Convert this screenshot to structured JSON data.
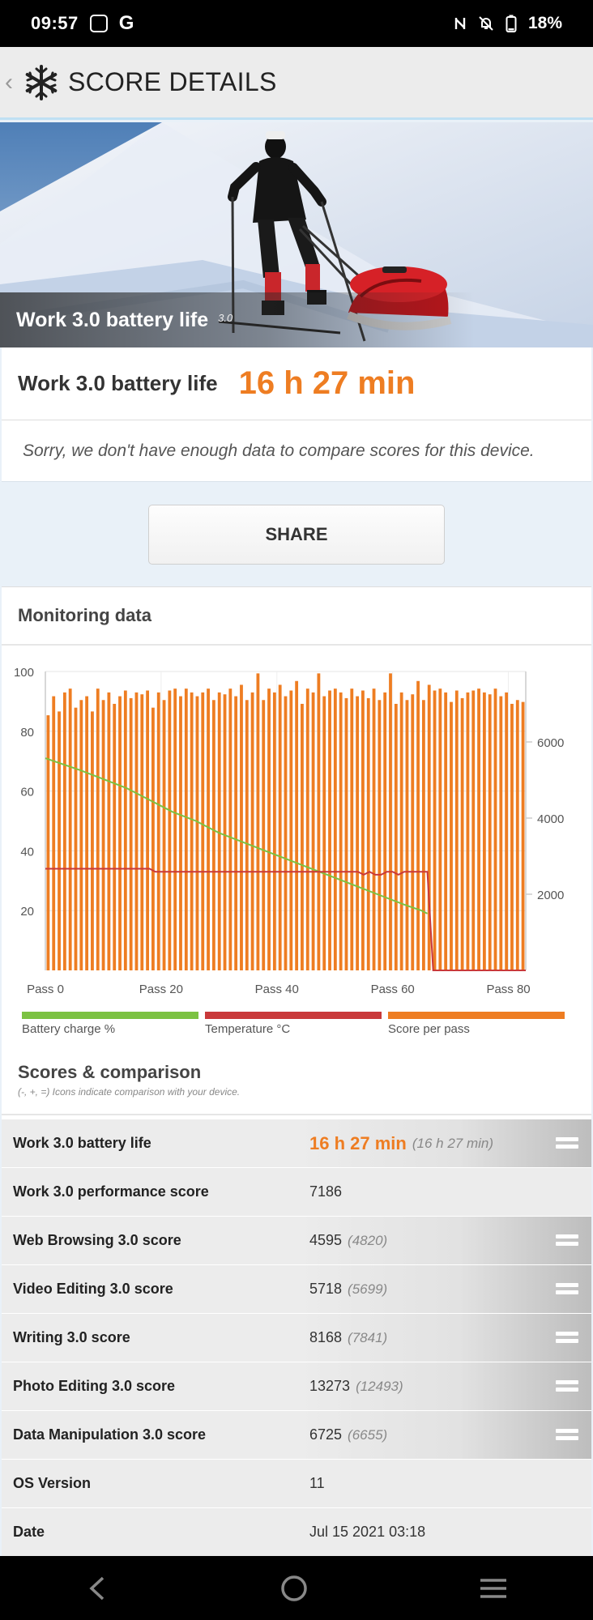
{
  "status_bar": {
    "time": "09:57",
    "battery": "18%"
  },
  "header": {
    "title": "SCORE DETAILS"
  },
  "hero": {
    "caption": "Work 3.0 battery life",
    "version": "3.0"
  },
  "result": {
    "label": "Work 3.0 battery life",
    "value": "16 h 27 min"
  },
  "notice": "Sorry, we don't have enough data to compare scores for this device.",
  "share_label": "SHARE",
  "monitoring": {
    "title": "Monitoring data",
    "legend": [
      {
        "label": "Battery charge %",
        "color": "#7cc242"
      },
      {
        "label": "Temperature °C",
        "color": "#c9393a"
      },
      {
        "label": "Score per pass",
        "color": "#ee7d22"
      }
    ]
  },
  "chart_data": {
    "type": "bar",
    "x_ticks": [
      "Pass 0",
      "Pass 20",
      "Pass 40",
      "Pass 60",
      "Pass 80"
    ],
    "x_tick_values": [
      0,
      20,
      40,
      60,
      80
    ],
    "x_range": [
      0,
      83
    ],
    "y_left_ticks": [
      20,
      40,
      60,
      80,
      100
    ],
    "y_left_range": [
      0,
      100
    ],
    "y_right_ticks": [
      2000,
      4000,
      6000
    ],
    "y_right_range": [
      0,
      7850
    ],
    "series": [
      {
        "name": "Score per pass",
        "axis": "right",
        "values": [
          6700,
          7200,
          6800,
          7300,
          7400,
          6900,
          7100,
          7200,
          6800,
          7400,
          7100,
          7300,
          7000,
          7200,
          7350,
          7150,
          7300,
          7250,
          7350,
          6900,
          7300,
          7100,
          7350,
          7400,
          7200,
          7400,
          7300,
          7200,
          7300,
          7400,
          7100,
          7300,
          7250,
          7400,
          7200,
          7500,
          7100,
          7300,
          7800,
          7100,
          7400,
          7300,
          7500,
          7200,
          7350,
          7600,
          7000,
          7400,
          7300,
          7800,
          7200,
          7350,
          7400,
          7300,
          7150,
          7400,
          7200,
          7350,
          7150,
          7400,
          7100,
          7300,
          7800,
          7000,
          7300,
          7100,
          7250,
          7600,
          7100,
          7500,
          7350,
          7400,
          7300,
          7050,
          7350,
          7150,
          7300,
          7350,
          7400,
          7300,
          7250,
          7400,
          7200,
          7300,
          7000,
          7100,
          7050
        ]
      },
      {
        "name": "Battery charge %",
        "axis": "left",
        "x": [
          0,
          3,
          6,
          10,
          14,
          18,
          22,
          26,
          30,
          34,
          38,
          42,
          46,
          50,
          54,
          58,
          62,
          65,
          66
        ],
        "values": [
          71,
          69,
          67,
          64,
          61,
          57,
          53,
          50,
          46,
          43,
          40,
          37,
          34,
          31,
          28,
          25,
          22,
          20,
          19
        ]
      },
      {
        "name": "Temperature °C",
        "axis": "left",
        "x": [
          0,
          18,
          19,
          54,
          55,
          56,
          57,
          58,
          59,
          60,
          61,
          62,
          66,
          67,
          83
        ],
        "values": [
          34,
          34,
          33,
          33,
          32,
          33,
          32,
          32,
          33,
          33,
          32,
          33,
          33,
          0,
          0
        ]
      }
    ]
  },
  "scores": {
    "title": "Scores & comparison",
    "note": "(-, +, =) Icons indicate comparison with your device.",
    "rows": [
      {
        "label": "Work 3.0 battery life",
        "value": "16 h 27 min",
        "compare": "(16 h 27 min)",
        "icon": "equal-icon",
        "highlight": true
      },
      {
        "label": "Work 3.0 performance score",
        "value": "7186",
        "compare": "",
        "icon": ""
      },
      {
        "label": "Web Browsing 3.0 score",
        "value": "4595",
        "compare": "(4820)",
        "icon": "equal-icon"
      },
      {
        "label": "Video Editing 3.0 score",
        "value": "5718",
        "compare": "(5699)",
        "icon": "equal-icon"
      },
      {
        "label": "Writing 3.0 score",
        "value": "8168",
        "compare": "(7841)",
        "icon": "equal-icon"
      },
      {
        "label": "Photo Editing 3.0 score",
        "value": "13273",
        "compare": "(12493)",
        "icon": "equal-icon"
      },
      {
        "label": "Data Manipulation 3.0 score",
        "value": "6725",
        "compare": "(6655)",
        "icon": "equal-icon"
      },
      {
        "label": "OS Version",
        "value": "11",
        "compare": "",
        "icon": ""
      },
      {
        "label": "Date",
        "value": "Jul 15 2021 03:18",
        "compare": "",
        "icon": ""
      }
    ]
  }
}
